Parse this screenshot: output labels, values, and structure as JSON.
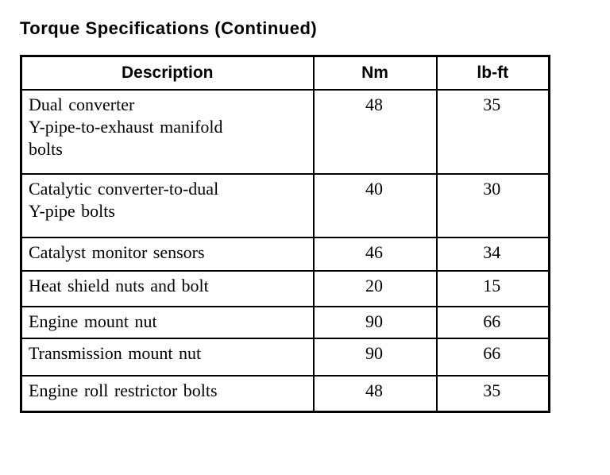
{
  "page": {
    "title": "Torque Specifications (Continued)"
  },
  "colors": {
    "text": "#000000",
    "background": "#ffffff",
    "border": "#000000"
  },
  "table": {
    "columns": [
      {
        "key": "description",
        "label": "Description"
      },
      {
        "key": "nm",
        "label": "Nm"
      },
      {
        "key": "lbft",
        "label": "lb-ft"
      }
    ],
    "rows": [
      {
        "description_lines": [
          "Dual converter",
          "Y-pipe-to-exhaust manifold",
          "bolts"
        ],
        "nm": "48",
        "lbft": "35"
      },
      {
        "description_lines": [
          "Catalytic converter-to-dual",
          "Y-pipe bolts"
        ],
        "nm": "40",
        "lbft": "30"
      },
      {
        "description_lines": [
          "Catalyst monitor sensors"
        ],
        "nm": "46",
        "lbft": "34"
      },
      {
        "description_lines": [
          "Heat shield nuts and bolt"
        ],
        "nm": "20",
        "lbft": "15"
      },
      {
        "description_lines": [
          "Engine mount nut"
        ],
        "nm": "90",
        "lbft": "66"
      },
      {
        "description_lines": [
          "Transmission mount nut"
        ],
        "nm": "90",
        "lbft": "66"
      },
      {
        "description_lines": [
          "Engine roll restrictor bolts"
        ],
        "nm": "48",
        "lbft": "35"
      }
    ]
  }
}
